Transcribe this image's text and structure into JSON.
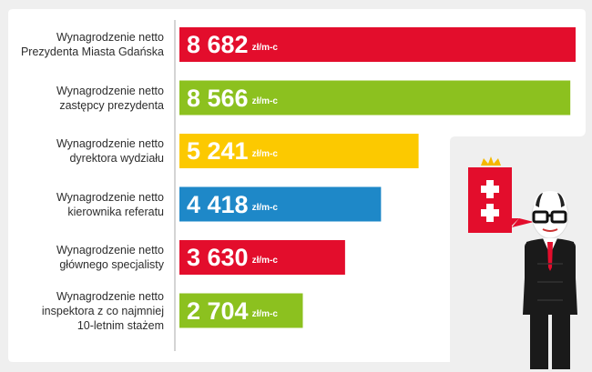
{
  "chart_data": {
    "type": "bar",
    "orientation": "horizontal",
    "categories": [
      "Wynagrodzenie netto\nPrezydenta Miasta Gdańska",
      "Wynagrodzenie netto\nzastępcy prezydenta",
      "Wynagrodzenie netto\ndyrektora wydziału",
      "Wynagrodzenie netto\nkierownika referatu",
      "Wynagrodzenie netto\ngłównego specjalisty",
      "Wynagrodzenie netto\ninspektora z co najmniej\n10-letnim stażem"
    ],
    "values": [
      8682,
      8566,
      5241,
      4418,
      3630,
      2704
    ],
    "value_labels": [
      "8 682",
      "8 566",
      "5 241",
      "4 418",
      "3 630",
      "2 704"
    ],
    "unit": "zł/m-c",
    "bar_colors": [
      "#e30d2c",
      "#8cc11f",
      "#fcc900",
      "#1e88c8",
      "#e30d2c",
      "#8cc11f"
    ],
    "xlim": [
      0,
      8682
    ]
  },
  "colors": {
    "background": "#efefef",
    "panel": "#ffffff",
    "axis": "#aaaaaa"
  },
  "mascot": {
    "emblem_color": "#e30d2c",
    "crown_color": "#f5b800"
  }
}
